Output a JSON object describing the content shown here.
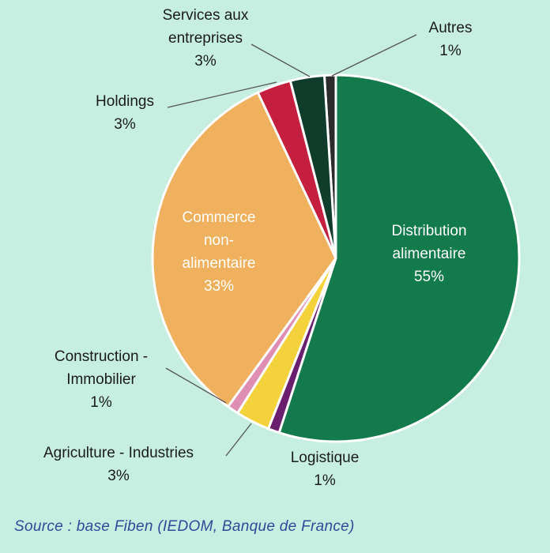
{
  "chart_data": {
    "type": "pie",
    "categories": [
      "Distribution alimentaire",
      "Logistique",
      "Agriculture - Industries",
      "Construction - Immobilier",
      "Commerce non-alimentaire",
      "Holdings",
      "Services aux entreprises",
      "Autres"
    ],
    "values": [
      55,
      1,
      3,
      1,
      33,
      3,
      3,
      1
    ],
    "value_labels": [
      "55%",
      "1%",
      "3%",
      "1%",
      "33%",
      "3%",
      "3%",
      "1%"
    ],
    "colors": [
      "#137a4b",
      "#6a1f6e",
      "#f4d23c",
      "#de8db3",
      "#efb15d",
      "#c51f3f",
      "#103d2b",
      "#2b2b2b"
    ],
    "source": "Source : base Fiben (IEDOM, Banque de France)"
  }
}
